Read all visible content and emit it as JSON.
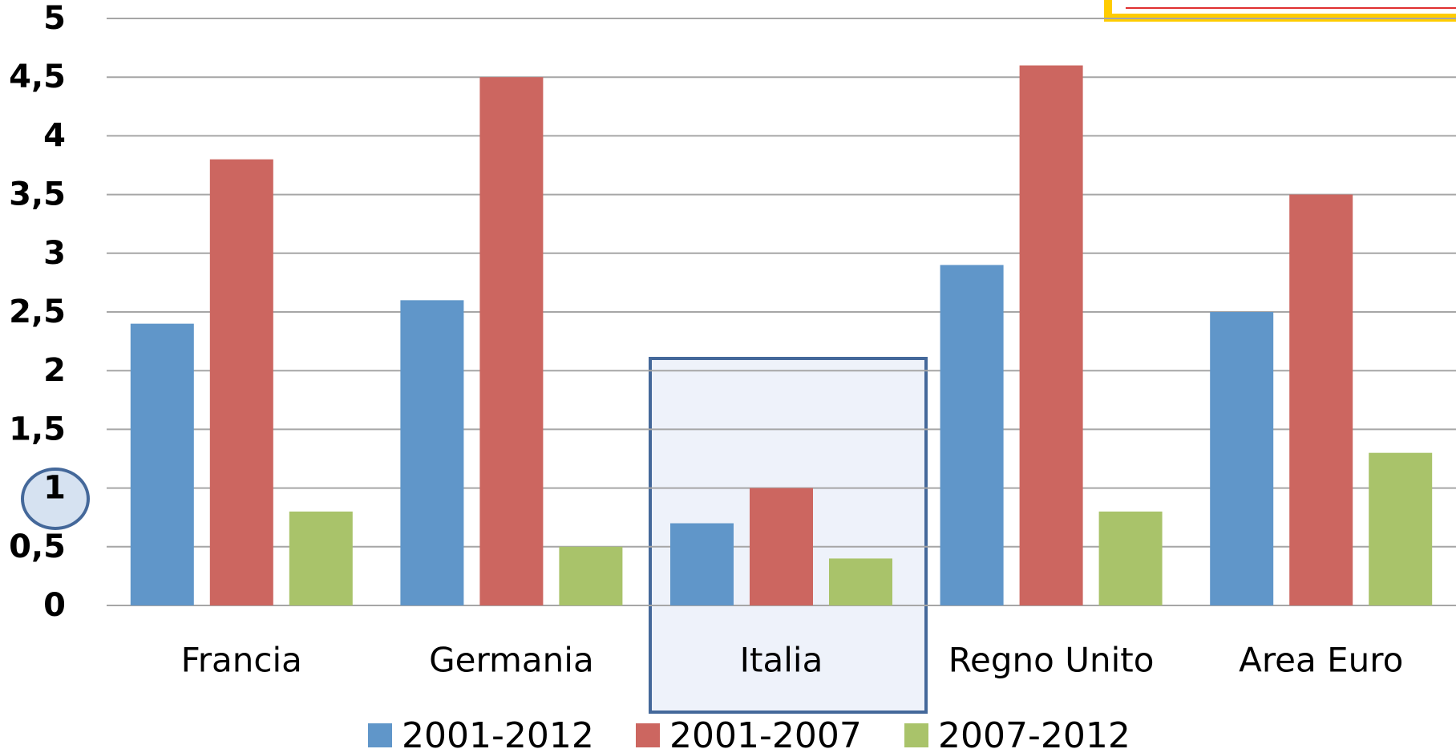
{
  "chart_data": {
    "type": "bar",
    "categories": [
      "Francia",
      "Germania",
      "Italia",
      "Regno Unito",
      "Area Euro"
    ],
    "series": [
      {
        "name": "2001-2012",
        "color": "#6096c9",
        "values": [
          2.4,
          2.6,
          0.7,
          2.9,
          2.5
        ]
      },
      {
        "name": "2001-2007",
        "color": "#cc6660",
        "values": [
          3.8,
          4.5,
          1.0,
          4.6,
          3.5
        ]
      },
      {
        "name": "2007-2012",
        "color": "#a9c36a",
        "values": [
          0.8,
          0.5,
          0.4,
          0.8,
          1.3
        ]
      }
    ],
    "ylim": [
      0,
      5
    ],
    "yticks": [
      0,
      {
        "value": 0.5,
        "label": "0,5"
      },
      1,
      {
        "value": 1.5,
        "label": "1,5"
      },
      2,
      {
        "value": 2.5,
        "label": "2,5"
      },
      3,
      {
        "value": 3.5,
        "label": "3,5"
      },
      4,
      {
        "value": 4.5,
        "label": "4,5"
      },
      5
    ],
    "grid": true,
    "legend": "bottom"
  }
}
